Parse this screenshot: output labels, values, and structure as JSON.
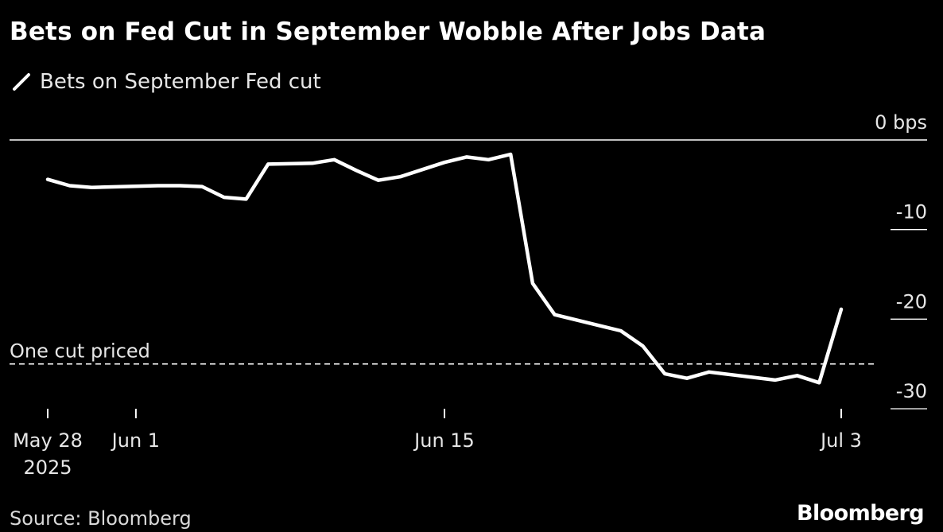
{
  "title": "Bets on Fed Cut in September Wobble After Jobs Data",
  "legend": {
    "label": "Bets on September Fed cut"
  },
  "source": "Source: Bloomberg",
  "logo": "Bloomberg",
  "colors": {
    "background": "#000000",
    "line": "#ffffff",
    "text": "#ffffff"
  },
  "chart_data": {
    "type": "line",
    "title": "Bets on Fed Cut in September Wobble After Jobs Data",
    "xlabel": "",
    "ylabel": "",
    "ylim": [
      -30,
      0
    ],
    "grid": false,
    "legend_position": "top-left",
    "y_ticks": [
      {
        "value": 0,
        "label": "0 bps"
      },
      {
        "value": -10,
        "label": "-10"
      },
      {
        "value": -20,
        "label": "-20"
      },
      {
        "value": -30,
        "label": "-30"
      }
    ],
    "x_ticks": [
      {
        "date": "2025-05-28",
        "lines": [
          "May 28",
          "2025"
        ]
      },
      {
        "date": "2025-06-01",
        "lines": [
          "Jun 1"
        ]
      },
      {
        "date": "2025-06-15",
        "lines": [
          "Jun 15"
        ]
      },
      {
        "date": "2025-07-03",
        "lines": [
          "Jul 3"
        ]
      }
    ],
    "reference_line": {
      "value": -25,
      "label": "One cut priced",
      "style": "dashed"
    },
    "series": [
      {
        "name": "Bets on September Fed cut",
        "points": [
          [
            "2025-05-28",
            -4.4
          ],
          [
            "2025-05-29",
            -5.1
          ],
          [
            "2025-05-30",
            -5.3
          ],
          [
            "2025-06-02",
            -5.1
          ],
          [
            "2025-06-03",
            -5.1
          ],
          [
            "2025-06-04",
            -5.2
          ],
          [
            "2025-06-05",
            -6.4
          ],
          [
            "2025-06-06",
            -6.6
          ],
          [
            "2025-06-07",
            -2.7
          ],
          [
            "2025-06-09",
            -2.6
          ],
          [
            "2025-06-10",
            -2.2
          ],
          [
            "2025-06-11",
            -3.4
          ],
          [
            "2025-06-12",
            -4.5
          ],
          [
            "2025-06-13",
            -4.1
          ],
          [
            "2025-06-15",
            -2.5
          ],
          [
            "2025-06-16",
            -1.9
          ],
          [
            "2025-06-17",
            -2.2
          ],
          [
            "2025-06-18",
            -1.6
          ],
          [
            "2025-06-19",
            -16.0
          ],
          [
            "2025-06-20",
            -19.5
          ],
          [
            "2025-06-23",
            -21.3
          ],
          [
            "2025-06-24",
            -23.0
          ],
          [
            "2025-06-25",
            -26.1
          ],
          [
            "2025-06-26",
            -26.6
          ],
          [
            "2025-06-27",
            -25.9
          ],
          [
            "2025-06-30",
            -26.8
          ],
          [
            "2025-07-01",
            -26.3
          ],
          [
            "2025-07-02",
            -27.1
          ],
          [
            "2025-07-03",
            -18.9
          ]
        ]
      }
    ]
  }
}
